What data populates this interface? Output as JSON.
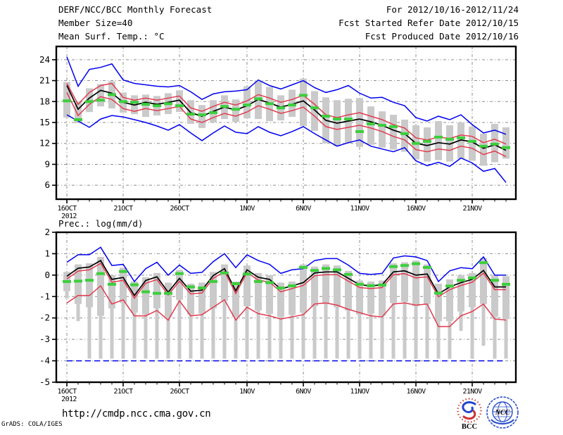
{
  "header": {
    "title": "DERF/NCC/BCC Monthly Forecast",
    "member_size": "Member Size=40",
    "temp_subtitle": "Mean Surf. Temp.: °C",
    "for_range": "For 2012/10/16-2012/11/24",
    "refer_date": "Fcst Started Refer Date 2012/10/15",
    "produced_date": "Fcst Produced Date 2012/10/16"
  },
  "footer": {
    "url": "http://cmdp.ncc.cma.gov.cn",
    "credit": "GrADS: COLA/IGES",
    "bcc_logo_text": "BCC",
    "ncc_logo_text": "NCC"
  },
  "colors": {
    "blue": "#0000f0",
    "red": "#e13b4f",
    "green": "#3ccf3c",
    "black": "#000000",
    "bar": "#cacaca",
    "grid": "#8c8c8c"
  },
  "chart_data": [
    {
      "type": "line",
      "title": "Mean Surf. Temp.: °C",
      "xlabel": "",
      "ylabel": "°C",
      "ylim": [
        4.0,
        25.9
      ],
      "yticks": [
        24,
        21,
        18,
        15,
        12,
        9,
        6
      ],
      "days": 40,
      "x_tick_labels": [
        "16OCT",
        "21OCT",
        "26OCT",
        "1NOV",
        "6NOV",
        "11NOV",
        "16NOV",
        "21NOV"
      ],
      "x_tick_days": [
        0,
        5,
        10,
        16,
        21,
        26,
        31,
        36
      ],
      "year_label": "2012",
      "series": [
        {
          "name": "ensemble-max",
          "color": "blue",
          "values": [
            24.4,
            20.2,
            22.6,
            22.9,
            23.4,
            21.1,
            20.6,
            20.4,
            20.2,
            20.1,
            20.3,
            19.4,
            18.3,
            19.1,
            19.4,
            19.5,
            19.7,
            21.1,
            20.3,
            19.8,
            20.4,
            21.0,
            20.0,
            19.3,
            19.7,
            20.3,
            19.2,
            18.5,
            18.6,
            17.9,
            17.4,
            15.7,
            15.2,
            15.9,
            15.4,
            16.1,
            14.7,
            13.5,
            13.9,
            13.3
          ]
        },
        {
          "name": "upper-spread",
          "color": "red",
          "values": [
            20.6,
            17.6,
            19.3,
            20.3,
            20.6,
            18.6,
            18.2,
            18.5,
            18.2,
            18.5,
            18.8,
            17.1,
            16.6,
            17.3,
            17.9,
            17.5,
            18.1,
            19.0,
            18.5,
            17.9,
            18.3,
            18.9,
            17.6,
            16.1,
            15.7,
            16.1,
            16.4,
            15.9,
            15.4,
            14.7,
            14.2,
            12.8,
            12.5,
            12.9,
            12.7,
            13.2,
            13.0,
            12.1,
            12.6,
            11.9
          ]
        },
        {
          "name": "lower-spread",
          "color": "red",
          "values": [
            19.3,
            16.0,
            17.6,
            18.7,
            18.3,
            17.0,
            16.6,
            17.0,
            16.7,
            17.0,
            17.3,
            15.5,
            15.0,
            15.7,
            16.3,
            15.9,
            16.5,
            17.4,
            16.9,
            16.3,
            16.7,
            17.2,
            15.9,
            14.4,
            14.0,
            14.3,
            14.6,
            14.2,
            13.7,
            13.0,
            12.5,
            11.1,
            10.8,
            11.2,
            11.0,
            11.6,
            11.3,
            10.4,
            10.9,
            10.1
          ]
        },
        {
          "name": "ensemble-mean",
          "color": "black",
          "values": [
            20.3,
            16.9,
            18.5,
            19.6,
            19.2,
            17.9,
            17.5,
            17.9,
            17.6,
            17.9,
            18.2,
            16.4,
            15.9,
            16.6,
            17.2,
            16.8,
            17.4,
            18.3,
            17.8,
            17.2,
            17.6,
            18.1,
            16.8,
            15.3,
            14.9,
            15.2,
            15.5,
            15.1,
            14.6,
            13.9,
            13.4,
            12.0,
            11.7,
            12.1,
            11.9,
            12.5,
            12.2,
            11.3,
            11.8,
            11.0
          ]
        },
        {
          "name": "ensemble-min",
          "color": "blue",
          "values": [
            16.1,
            15.2,
            14.3,
            15.5,
            16.0,
            15.8,
            15.4,
            15.0,
            14.5,
            13.9,
            14.7,
            13.5,
            12.4,
            13.5,
            14.5,
            13.6,
            13.4,
            14.4,
            13.6,
            13.1,
            13.7,
            14.4,
            13.4,
            12.5,
            11.6,
            12.1,
            12.5,
            11.6,
            11.2,
            10.8,
            11.4,
            9.5,
            8.8,
            9.3,
            8.7,
            9.9,
            9.2,
            8.0,
            8.4,
            6.4
          ]
        }
      ],
      "observation": {
        "name": "observation",
        "color": "green",
        "values": [
          18.1,
          15.4,
          18.0,
          18.2,
          19.0,
          18.0,
          17.9,
          17.6,
          17.4,
          17.7,
          17.4,
          16.2,
          16.1,
          16.4,
          17.3,
          16.9,
          17.5,
          18.4,
          17.7,
          17.1,
          17.5,
          18.9,
          17.1,
          15.9,
          15.5,
          15.5,
          13.7,
          14.8,
          14.6,
          14.4,
          13.4,
          12.0,
          12.3,
          12.9,
          12.6,
          12.8,
          12.3,
          11.6,
          11.9,
          11.4
        ]
      },
      "bars": {
        "high": [
          20.8,
          18.0,
          19.9,
          20.5,
          20.9,
          19.3,
          18.9,
          19.0,
          18.8,
          19.2,
          19.6,
          18.2,
          17.5,
          18.2,
          18.9,
          18.3,
          20.2,
          21.0,
          20.1,
          18.9,
          19.7,
          21.3,
          19.5,
          18.6,
          18.2,
          18.4,
          18.5,
          17.3,
          16.6,
          16.1,
          15.4,
          14.6,
          14.3,
          15.2,
          14.6,
          15.0,
          14.4,
          13.4,
          14.8,
          14.3
        ],
        "low": [
          15.7,
          14.9,
          16.5,
          17.3,
          17.0,
          16.4,
          16.2,
          15.8,
          16.0,
          16.2,
          16.5,
          14.8,
          14.2,
          15.0,
          15.5,
          15.1,
          15.6,
          15.5,
          15.2,
          15.3,
          15.8,
          14.5,
          13.8,
          12.0,
          11.6,
          12.0,
          11.5,
          11.8,
          11.4,
          11.1,
          10.8,
          9.7,
          9.4,
          9.6,
          9.4,
          9.8,
          9.5,
          8.8,
          9.3,
          9.8
        ]
      }
    },
    {
      "type": "line",
      "title": "Prec.: log(mm/d)",
      "xlabel": "",
      "ylabel": "log(mm/d)",
      "ylim": [
        -5,
        2
      ],
      "yticks": [
        2,
        1,
        0,
        -1,
        -2,
        -3,
        -4,
        -5
      ],
      "days": 40,
      "x_tick_labels": [
        "16OCT",
        "21OCT",
        "26OCT",
        "1NOV",
        "6NOV",
        "11NOV",
        "16NOV",
        "21NOV"
      ],
      "x_tick_days": [
        0,
        5,
        10,
        16,
        21,
        26,
        31,
        36
      ],
      "year_label": "2012",
      "series": [
        {
          "name": "ensemble-max",
          "color": "blue",
          "values": [
            0.6,
            0.95,
            0.95,
            1.3,
            0.45,
            0.5,
            -0.3,
            0.3,
            0.6,
            0.0,
            0.47,
            0.08,
            0.13,
            0.63,
            1.0,
            0.35,
            0.95,
            0.68,
            0.5,
            0.08,
            0.25,
            0.3,
            0.68,
            0.77,
            0.77,
            0.47,
            0.08,
            0.03,
            0.08,
            0.8,
            0.9,
            0.85,
            0.68,
            -0.3,
            0.2,
            0.35,
            0.3,
            0.85,
            0.0,
            0.0
          ]
        },
        {
          "name": "upper-spread",
          "color": "red",
          "values": [
            -0.18,
            0.19,
            0.25,
            0.55,
            -0.33,
            -0.24,
            -1.08,
            -0.38,
            -0.21,
            -0.93,
            -0.28,
            -0.88,
            -0.83,
            -0.15,
            0.17,
            -0.86,
            0.12,
            -0.23,
            -0.33,
            -0.78,
            -0.63,
            -0.48,
            -0.03,
            0.02,
            0.02,
            -0.28,
            -0.58,
            -0.63,
            -0.58,
            0.02,
            0.07,
            -0.13,
            -0.08,
            -1.01,
            -0.68,
            -0.48,
            -0.33,
            0.09,
            -0.68,
            -0.68
          ]
        },
        {
          "name": "lower-spread",
          "color": "red",
          "values": [
            -1.3,
            -0.95,
            -0.95,
            -0.5,
            -1.35,
            -1.15,
            -1.9,
            -1.9,
            -1.65,
            -2.1,
            -1.2,
            -1.9,
            -1.85,
            -1.5,
            -1.15,
            -2.1,
            -1.5,
            -1.8,
            -1.9,
            -2.05,
            -1.95,
            -1.85,
            -1.35,
            -1.3,
            -1.4,
            -1.6,
            -1.75,
            -1.9,
            -1.95,
            -1.35,
            -1.3,
            -1.4,
            -1.35,
            -2.4,
            -2.4,
            -1.9,
            -1.7,
            -1.35,
            -2.05,
            -2.1
          ]
        },
        {
          "name": "ensemble-mean",
          "color": "black",
          "values": [
            -0.05,
            0.32,
            0.38,
            0.68,
            -0.2,
            -0.11,
            -0.95,
            -0.25,
            -0.08,
            -0.8,
            -0.15,
            -0.75,
            -0.7,
            -0.02,
            0.3,
            -0.73,
            0.25,
            -0.1,
            -0.2,
            -0.65,
            -0.5,
            -0.35,
            0.1,
            0.15,
            0.15,
            -0.15,
            -0.45,
            -0.5,
            -0.45,
            0.15,
            0.2,
            0.0,
            0.05,
            -0.88,
            -0.55,
            -0.35,
            -0.2,
            0.22,
            -0.55,
            -0.55
          ]
        },
        {
          "name": "ensemble-min",
          "color": "blue",
          "dashed": true,
          "values": [
            -4,
            -4,
            -4,
            -4,
            -4,
            -4,
            -4,
            -4,
            -4,
            -4,
            -4,
            -4,
            -4,
            -4,
            -4,
            -4,
            -4,
            -4,
            -4,
            -4,
            -4,
            -4,
            -4,
            -4,
            -4,
            -4,
            -4,
            -4,
            -4,
            -4,
            -4,
            -4,
            -4,
            -4,
            -4,
            -4,
            -4,
            -4,
            -4,
            -4
          ]
        }
      ],
      "observation": {
        "name": "observation",
        "color": "green",
        "values": [
          -0.3,
          -0.28,
          -0.24,
          0.07,
          -0.43,
          0.17,
          -0.45,
          -0.78,
          -0.85,
          -0.85,
          0.07,
          -0.55,
          -0.6,
          -0.3,
          0.1,
          -0.4,
          0.05,
          -0.3,
          -0.35,
          -0.6,
          -0.5,
          0.36,
          0.22,
          0.31,
          0.25,
          0.03,
          -0.43,
          -0.49,
          -0.46,
          0.4,
          0.45,
          0.53,
          0.36,
          -0.84,
          -0.51,
          -0.24,
          -0.13,
          0.58,
          -0.24,
          -0.43
        ]
      },
      "bars": {
        "high": [
          0.15,
          0.5,
          0.55,
          0.85,
          0.0,
          0.35,
          -0.3,
          -0.1,
          0.1,
          -0.35,
          0.25,
          -0.4,
          -0.35,
          0.15,
          0.5,
          -0.3,
          0.45,
          0.1,
          0.0,
          -0.35,
          -0.3,
          0.5,
          0.4,
          0.5,
          0.45,
          0.2,
          -0.25,
          -0.3,
          -0.25,
          0.55,
          0.6,
          0.68,
          0.5,
          -0.4,
          -0.2,
          0.0,
          0.1,
          0.8,
          0.0,
          -0.05
        ],
        "low": [
          -0.75,
          -1.35,
          -1.5,
          -1.9,
          -1.55,
          -1.3,
          -1.75,
          -1.85,
          -1.55,
          -1.95,
          -1.15,
          -1.85,
          -1.8,
          -1.55,
          -1.2,
          -1.95,
          -1.45,
          -1.65,
          -1.8,
          -1.95,
          -1.85,
          -1.75,
          -1.45,
          -1.35,
          -1.5,
          -1.65,
          -1.85,
          -1.8,
          -1.9,
          -1.3,
          -1.25,
          -1.45,
          -1.35,
          -2.15,
          -2.15,
          -1.7,
          -1.5,
          -1.35,
          -1.95,
          -2.05
        ],
        "stem_low": [
          -1.1,
          -2.15,
          -3.9,
          -3.9,
          -3.9,
          -3.9,
          -3.9,
          -3.9,
          -3.9,
          -3.9,
          -3.9,
          -3.9,
          -3.9,
          -3.9,
          -3.9,
          -3.9,
          -3.9,
          -3.9,
          -3.9,
          -3.9,
          -3.9,
          -3.9,
          -3.9,
          -3.9,
          -3.9,
          -3.9,
          -3.9,
          -3.9,
          -3.9,
          -3.9,
          -3.9,
          -3.9,
          -3.9,
          -3.9,
          -3.9,
          -2.6,
          -3.9,
          -3.3,
          -3.9,
          -3.9
        ]
      }
    }
  ]
}
